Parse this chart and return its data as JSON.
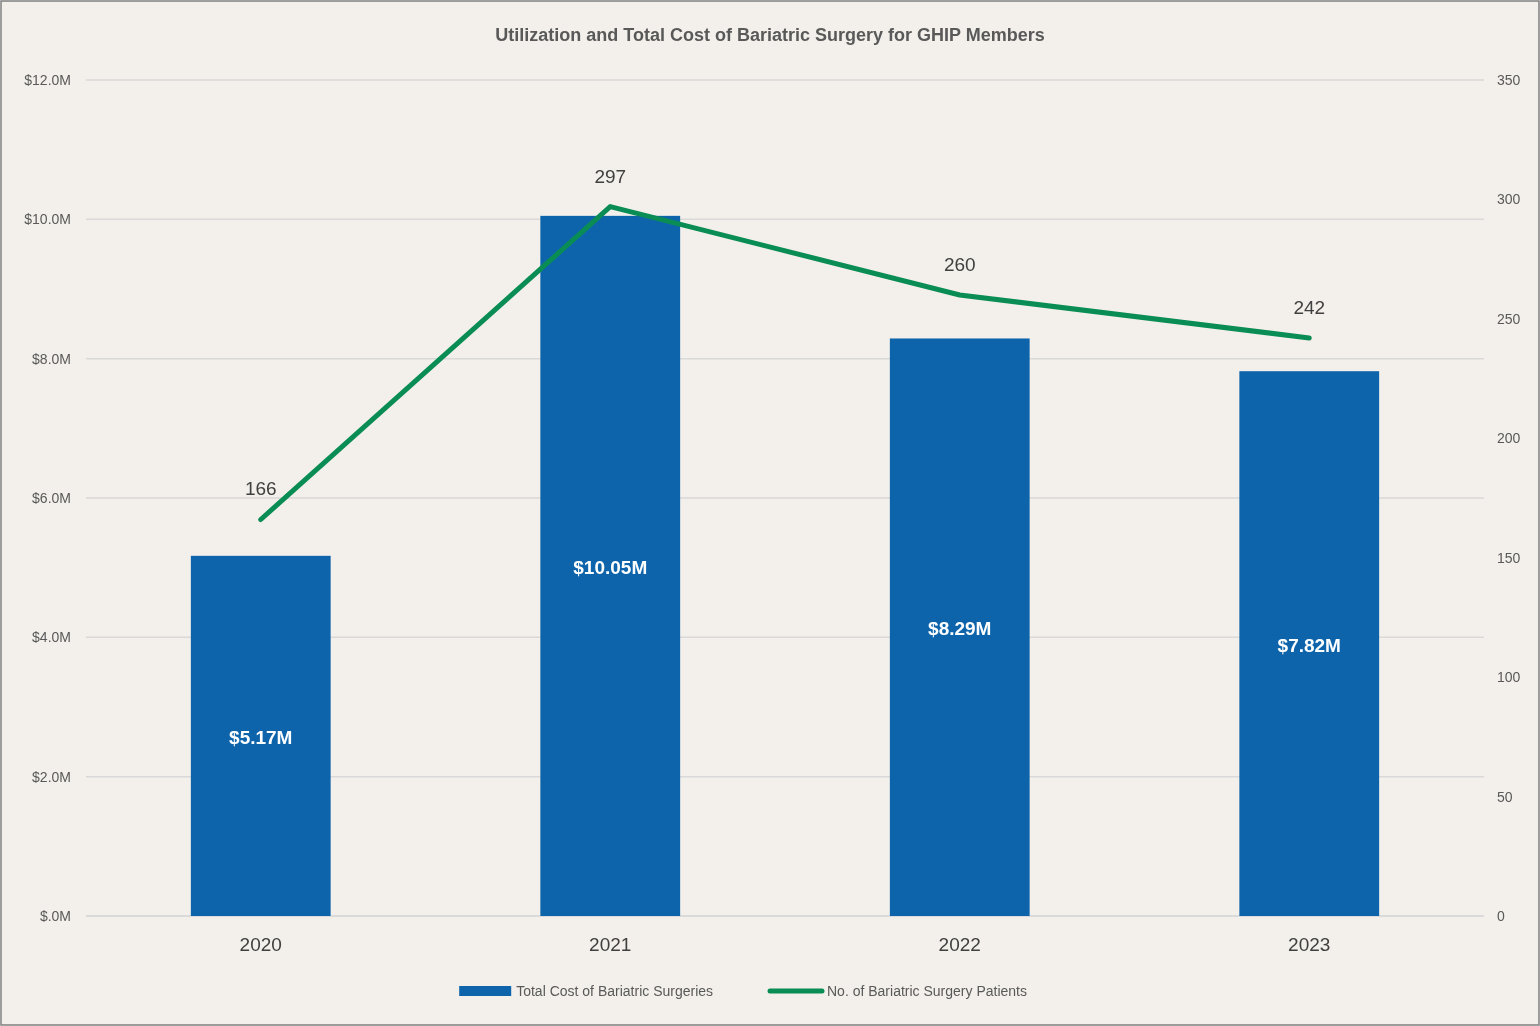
{
  "chart_data": {
    "type": "bar",
    "title": "Utilization and Total Cost of Bariatric Surgery for GHIP Members",
    "categories": [
      "2020",
      "2021",
      "2022",
      "2023"
    ],
    "series": [
      {
        "name": "Total Cost of Bariatric Surgeries",
        "color": "#0e64ab",
        "values": [
          5.17,
          10.05,
          8.29,
          7.82
        ],
        "value_labels": [
          "$5.17M",
          "$10.05M",
          "$8.29M",
          "$7.82M"
        ]
      },
      {
        "name": "No. of Bariatric Surgery Patients",
        "type": "line",
        "axis": "y2",
        "color": "#0a8c55",
        "values": [
          166,
          297,
          260,
          242
        ],
        "value_labels": [
          "166",
          "297",
          "260",
          "242"
        ]
      }
    ],
    "ylim": [
      0,
      12
    ],
    "yticks": [
      {
        "value": 0,
        "label": "$.0M"
      },
      {
        "value": 2,
        "label": "$2.0M"
      },
      {
        "value": 4,
        "label": "$4.0M"
      },
      {
        "value": 6,
        "label": "$6.0M"
      },
      {
        "value": 8,
        "label": "$8.0M"
      },
      {
        "value": 10,
        "label": "$10.0M"
      },
      {
        "value": 12,
        "label": "$12.0M"
      }
    ],
    "y2lim": [
      0,
      350
    ],
    "y2ticks": [
      0,
      50,
      100,
      150,
      200,
      250,
      300,
      350
    ],
    "grid": "y",
    "legend": "bottom",
    "marker": "none",
    "line_style": "solid"
  }
}
